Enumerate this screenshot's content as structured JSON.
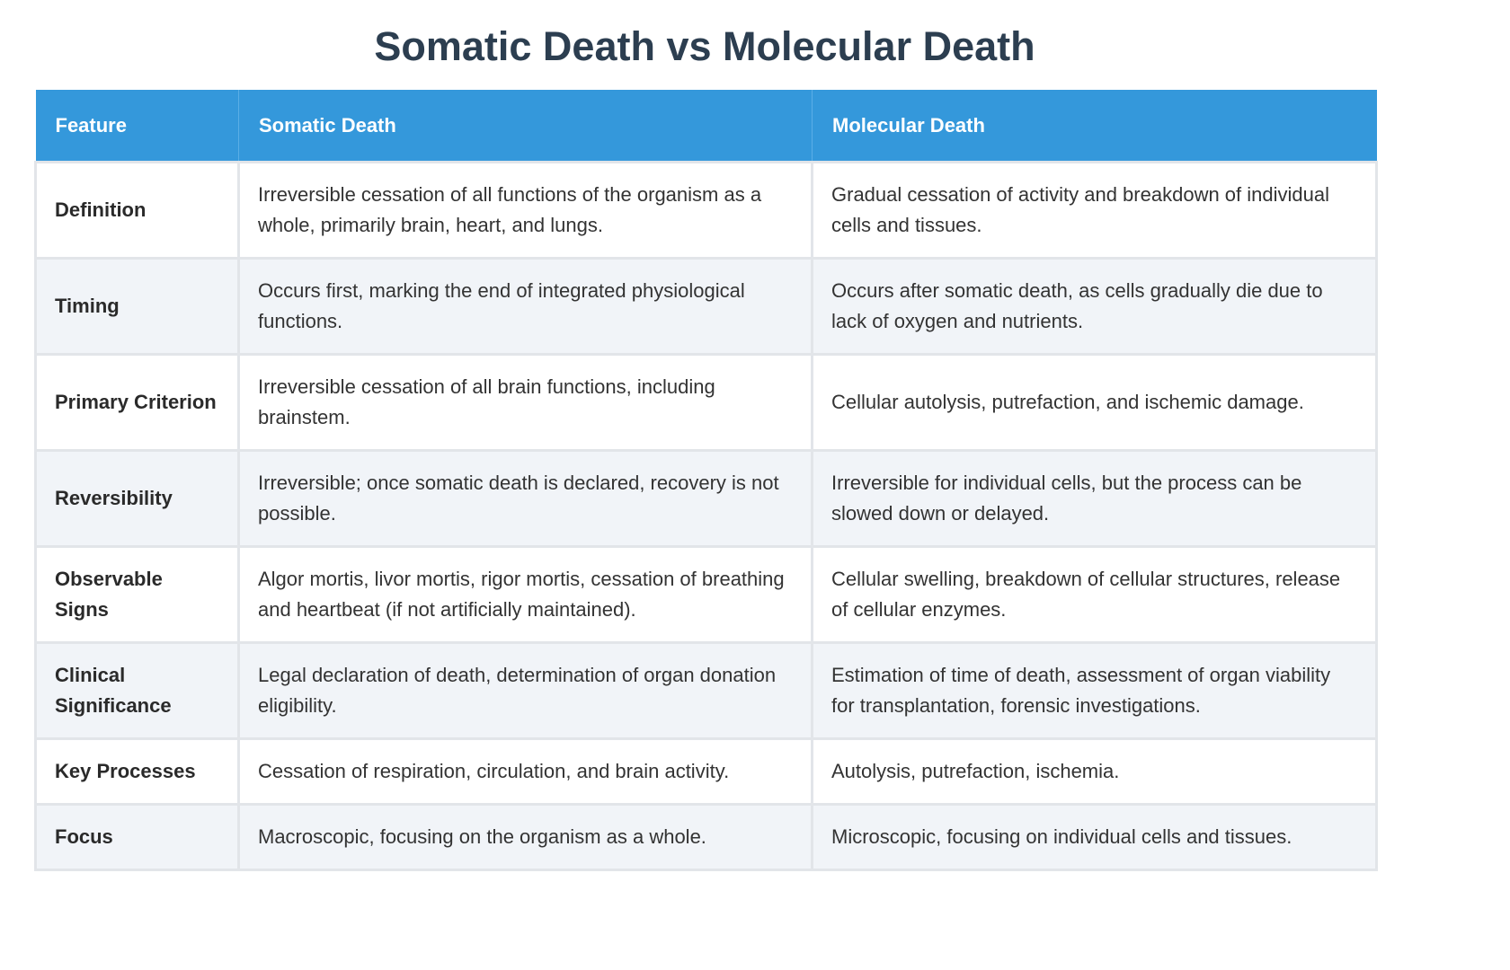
{
  "title": "Somatic Death vs Molecular Death",
  "headers": [
    "Feature",
    "Somatic Death",
    "Molecular Death"
  ],
  "rows": [
    {
      "feature": "Definition",
      "somatic": "Irreversible cessation of all functions of the organism as a whole, primarily brain, heart, and lungs.",
      "molecular": "Gradual cessation of activity and breakdown of individual cells and tissues."
    },
    {
      "feature": "Timing",
      "somatic": "Occurs first, marking the end of integrated physiological functions.",
      "molecular": "Occurs after somatic death, as cells gradually die due to lack of oxygen and nutrients."
    },
    {
      "feature": "Primary Criterion",
      "somatic": "Irreversible cessation of all brain functions, including brainstem.",
      "molecular": "Cellular autolysis, putrefaction, and ischemic damage."
    },
    {
      "feature": "Reversibility",
      "somatic": "Irreversible; once somatic death is declared, recovery is not possible.",
      "molecular": "Irreversible for individual cells, but the process can be slowed down or delayed."
    },
    {
      "feature": "Observable Signs",
      "somatic": "Algor mortis, livor mortis, rigor mortis, cessation of breathing and heartbeat (if not artificially maintained).",
      "molecular": "Cellular swelling, breakdown of cellular structures, release of cellular enzymes."
    },
    {
      "feature": "Clinical Significance",
      "somatic": "Legal declaration of death, determination of organ donation eligibility.",
      "molecular": "Estimation of time of death, assessment of organ viability for transplantation, forensic investigations."
    },
    {
      "feature": "Key Processes",
      "somatic": "Cessation of respiration, circulation, and brain activity.",
      "molecular": "Autolysis, putrefaction, ischemia."
    },
    {
      "feature": "Focus",
      "somatic": "Macroscopic, focusing on the organism as a whole.",
      "molecular": "Microscopic, focusing on individual cells and tissues."
    }
  ],
  "colors": {
    "header_bg": "#3498db",
    "title": "#2c3e50",
    "alt_row": "#f1f4f8"
  }
}
